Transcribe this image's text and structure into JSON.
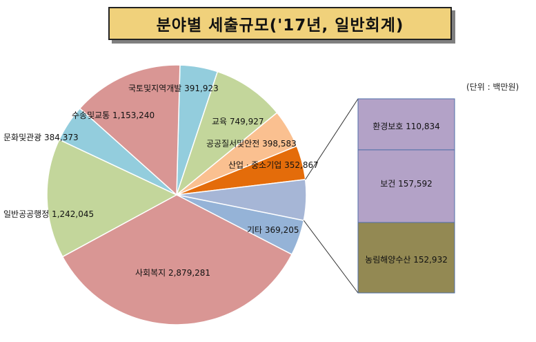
{
  "title": "분야별 세출규모('17년, 일반회계)",
  "unit": "(단위 : 백만원)",
  "chart_data": {
    "type": "pie",
    "slices": [
      {
        "name": "국토및지역개발",
        "value": 391923,
        "color": "#93cddd"
      },
      {
        "name": "교육",
        "value": 749927,
        "color": "#c3d69b"
      },
      {
        "name": "공공질서및안전",
        "value": 398583,
        "color": "#fac090"
      },
      {
        "name": "산업ㆍ중소기업",
        "value": 352867,
        "color": "#e46c0a"
      },
      {
        "name": "",
        "value": 421358,
        "color": "#a6b6d6"
      },
      {
        "name": "기타",
        "value": 369205,
        "color": "#95b3d7"
      },
      {
        "name": "사회복지",
        "value": 2879281,
        "color": "#d99694"
      },
      {
        "name": "일반공공행정",
        "value": 1242045,
        "color": "#c3d69b"
      },
      {
        "name": "문화및관광",
        "value": 384373,
        "color": "#93cddd"
      },
      {
        "name": "수송및교통",
        "value": 1153240,
        "color": "#d99694"
      }
    ],
    "breakdown": [
      {
        "name": "환경보호",
        "value": 110834,
        "color": "#b3a2c7"
      },
      {
        "name": "보건",
        "value": 157592,
        "color": "#b3a2c7"
      },
      {
        "name": "농림해양수산",
        "value": 152932,
        "color": "#938953"
      }
    ],
    "labels": [
      {
        "text": "국토및지역개발 391,923"
      },
      {
        "text": "교육 749,927"
      },
      {
        "text": "공공질서및안전 398,583"
      },
      {
        "text": "산업ㆍ중소기업 352,867"
      },
      {
        "text": "기타 369,205"
      },
      {
        "text": "사회복지 2,879,281"
      },
      {
        "text": "일반공공행정 1,242,045"
      },
      {
        "text": "문화및관광 384,373"
      },
      {
        "text": "수송및교통 1,153,240"
      },
      {
        "text": "환경보호 110,834"
      },
      {
        "text": "보건 157,592"
      },
      {
        "text": "농림해양수산 152,932"
      }
    ]
  }
}
